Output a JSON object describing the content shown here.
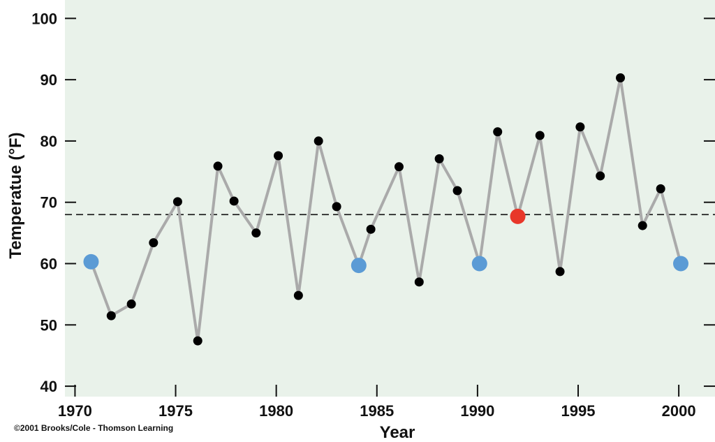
{
  "chart_data": {
    "type": "line",
    "title": "",
    "xlabel": "Year",
    "ylabel": "Temperatue (°F)",
    "xlim": [
      1969.5,
      2001.8
    ],
    "ylim": [
      38.3,
      103
    ],
    "x_ticks": [
      1970,
      1975,
      1980,
      1985,
      1990,
      1995,
      2000
    ],
    "y_ticks": [
      40,
      50,
      60,
      70,
      80,
      90,
      100
    ],
    "reference_line": {
      "y": 68,
      "style": "dashed"
    },
    "grid": false,
    "series": [
      {
        "x": [
          1970.8,
          1971.8,
          1972.8,
          1973.9,
          1975.1,
          1976.1,
          1977.1,
          1977.9,
          1979.0,
          1980.1,
          1981.1,
          1982.1,
          1983.0,
          1984.1,
          1984.7,
          1986.1,
          1987.1,
          1988.1,
          1989.0,
          1990.1,
          1991.0,
          1992.0,
          1993.1,
          1994.1,
          1995.1,
          1996.1,
          1997.1,
          1998.2,
          1999.1,
          2000.1
        ],
        "y": [
          60.3,
          51.5,
          53.4,
          63.4,
          70.1,
          47.4,
          75.9,
          70.2,
          65.0,
          77.6,
          54.8,
          80.0,
          69.3,
          59.7,
          65.6,
          75.8,
          57.0,
          77.1,
          71.9,
          60.0,
          81.5,
          67.7,
          80.9,
          58.7,
          82.3,
          74.3,
          90.3,
          66.2,
          72.2,
          60.0
        ],
        "marker_colors": [
          "#5b9bd5",
          "#000000",
          "#000000",
          "#000000",
          "#000000",
          "#000000",
          "#000000",
          "#000000",
          "#000000",
          "#000000",
          "#000000",
          "#000000",
          "#000000",
          "#5b9bd5",
          "#000000",
          "#000000",
          "#000000",
          "#000000",
          "#000000",
          "#5b9bd5",
          "#000000",
          "#e8372a",
          "#000000",
          "#000000",
          "#000000",
          "#000000",
          "#000000",
          "#000000",
          "#000000",
          "#5b9bd5"
        ],
        "line_color": "#aaaaaa"
      }
    ],
    "colors": {
      "background": "#e9f2ea",
      "highlight_blue": "#5b9bd5",
      "highlight_red": "#e8372a",
      "point": "#000000"
    }
  },
  "credit": "©2001 Brooks/Cole - Thomson Learning"
}
